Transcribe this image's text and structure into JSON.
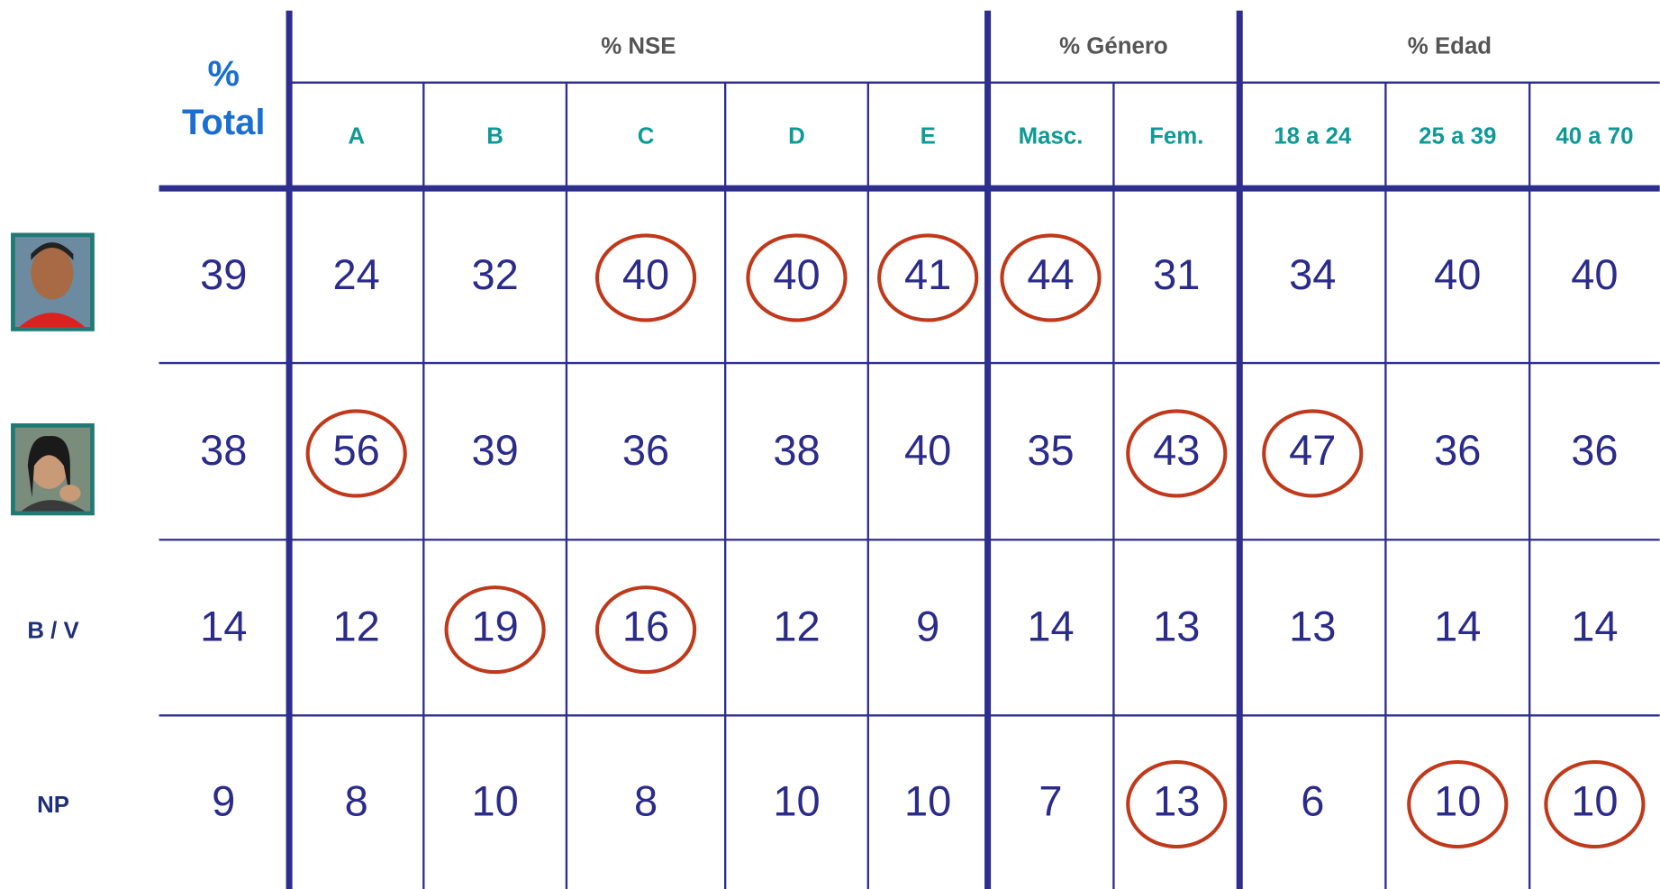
{
  "table": {
    "total_header": [
      "%",
      "Total"
    ],
    "groups": [
      {
        "label": "% NSE",
        "span": 5
      },
      {
        "label": "% Género",
        "span": 2
      },
      {
        "label": "% Edad",
        "span": 3
      }
    ],
    "columns": [
      "A",
      "B",
      "C",
      "D",
      "E",
      "Masc.",
      "Fem.",
      "18 a 24",
      "25 a 39",
      "40 a 70"
    ],
    "rows": [
      {
        "values": [
          39,
          24,
          32,
          40,
          40,
          41,
          44,
          31,
          34,
          40,
          40
        ],
        "circled": [
          3,
          4,
          5,
          6
        ]
      },
      {
        "values": [
          38,
          56,
          39,
          36,
          38,
          40,
          35,
          43,
          47,
          36,
          36
        ],
        "circled": [
          1,
          7,
          8
        ]
      },
      {
        "label": "B / V",
        "values": [
          14,
          12,
          19,
          16,
          12,
          9,
          14,
          13,
          13,
          14,
          14
        ],
        "circled": [
          2,
          3
        ]
      },
      {
        "label": "NP",
        "values": [
          9,
          8,
          10,
          8,
          10,
          10,
          7,
          13,
          6,
          10,
          10
        ],
        "circled": [
          7,
          9,
          10
        ]
      }
    ]
  }
}
